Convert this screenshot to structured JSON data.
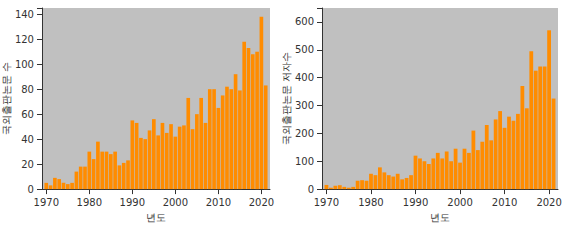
{
  "chart_data": [
    {
      "type": "bar",
      "xlabel": "년도",
      "ylabel": "국외출판논문 수",
      "color": "#ff8c00",
      "grid": false,
      "x": [
        1970,
        1971,
        1972,
        1973,
        1974,
        1975,
        1976,
        1977,
        1978,
        1979,
        1980,
        1981,
        1982,
        1983,
        1984,
        1985,
        1986,
        1987,
        1988,
        1989,
        1990,
        1991,
        1992,
        1993,
        1994,
        1995,
        1996,
        1997,
        1998,
        1999,
        2000,
        2001,
        2002,
        2003,
        2004,
        2005,
        2006,
        2007,
        2008,
        2009,
        2010,
        2011,
        2012,
        2013,
        2014,
        2015,
        2016,
        2017,
        2018,
        2019,
        2020,
        2021
      ],
      "values": [
        5,
        3,
        9,
        8,
        5,
        4,
        5,
        14,
        18,
        18,
        30,
        24,
        38,
        30,
        30,
        28,
        30,
        19,
        21,
        23,
        55,
        53,
        41,
        40,
        47,
        56,
        43,
        53,
        45,
        52,
        42,
        50,
        51,
        73,
        48,
        60,
        73,
        53,
        80,
        80,
        65,
        75,
        82,
        80,
        92,
        79,
        118,
        113,
        108,
        110,
        138,
        83
      ],
      "xlim": [
        1969,
        2022
      ],
      "xticks": [
        1970,
        1980,
        1990,
        2000,
        2010,
        2020
      ],
      "ylim": [
        0,
        145
      ],
      "yticks": [
        0,
        20,
        40,
        60,
        80,
        100,
        120,
        140
      ]
    },
    {
      "type": "bar",
      "xlabel": "년도",
      "ylabel": "국외출판논문 저자수",
      "color": "#ff8c00",
      "grid": false,
      "x": [
        1970,
        1971,
        1972,
        1973,
        1974,
        1975,
        1976,
        1977,
        1978,
        1979,
        1980,
        1981,
        1982,
        1983,
        1984,
        1985,
        1986,
        1987,
        1988,
        1989,
        1990,
        1991,
        1992,
        1993,
        1994,
        1995,
        1996,
        1997,
        1998,
        1999,
        2000,
        2001,
        2002,
        2003,
        2004,
        2005,
        2006,
        2007,
        2008,
        2009,
        2010,
        2011,
        2012,
        2013,
        2014,
        2015,
        2016,
        2017,
        2018,
        2019,
        2020,
        2021
      ],
      "values": [
        15,
        5,
        12,
        14,
        8,
        5,
        8,
        30,
        32,
        30,
        55,
        50,
        78,
        60,
        50,
        45,
        55,
        35,
        40,
        50,
        120,
        110,
        100,
        90,
        110,
        130,
        110,
        135,
        100,
        145,
        95,
        145,
        130,
        210,
        140,
        170,
        230,
        175,
        250,
        280,
        220,
        260,
        245,
        270,
        370,
        290,
        495,
        425,
        440,
        440,
        570,
        325
      ],
      "xlim": [
        1969,
        2022
      ],
      "xticks": [
        1970,
        1980,
        1990,
        2000,
        2010,
        2020
      ],
      "ylim": [
        0,
        650
      ],
      "yticks": [
        0,
        100,
        200,
        300,
        400,
        500,
        600
      ]
    }
  ]
}
